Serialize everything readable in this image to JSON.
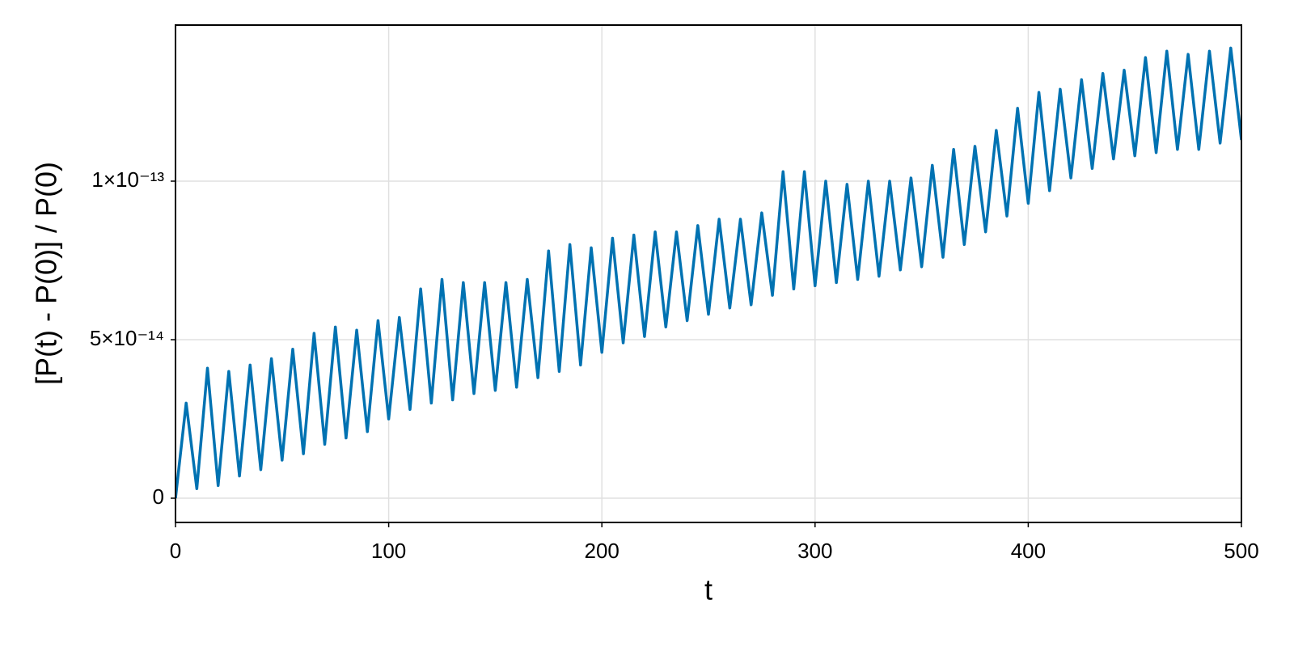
{
  "chart_data": {
    "type": "line",
    "xlabel": "t",
    "ylabel": "[P(t) - P(0)] / P(0)",
    "xlim": [
      0,
      500
    ],
    "xticks": [
      0,
      100,
      200,
      300,
      400,
      500
    ],
    "ylim": [
      -7.65e-15,
      1.4923e-13
    ],
    "yticks": [
      0,
      {
        "value": 5e-14,
        "label": "5×10⁻¹⁴"
      },
      {
        "value": 1e-13,
        "label": "1×10⁻¹³"
      }
    ],
    "grid": true,
    "series": [
      {
        "color": "#0072b2",
        "x": [
          0,
          5,
          10,
          15,
          20,
          25,
          30,
          35,
          40,
          45,
          50,
          55,
          60,
          65,
          70,
          75,
          80,
          85,
          90,
          95,
          100,
          105,
          110,
          115,
          120,
          125,
          130,
          135,
          140,
          145,
          150,
          155,
          160,
          165,
          170,
          175,
          180,
          185,
          190,
          195,
          200,
          205,
          210,
          215,
          220,
          225,
          230,
          235,
          240,
          245,
          250,
          255,
          260,
          265,
          270,
          275,
          280,
          285,
          290,
          295,
          300,
          305,
          310,
          315,
          320,
          325,
          330,
          335,
          340,
          345,
          350,
          355,
          360,
          365,
          370,
          375,
          380,
          385,
          390,
          395,
          400,
          405,
          410,
          415,
          420,
          425,
          430,
          435,
          440,
          445,
          450,
          455,
          460,
          465,
          470,
          475,
          480,
          485,
          490,
          495,
          500
        ],
        "values": [
          0,
          3e-14,
          3e-15,
          4.1e-14,
          4e-15,
          4e-14,
          7e-15,
          4.2e-14,
          9e-15,
          4.4e-14,
          1.2e-14,
          4.7e-14,
          1.4e-14,
          5.2e-14,
          1.7e-14,
          5.4e-14,
          1.9e-14,
          5.3e-14,
          2.1e-14,
          5.6e-14,
          2.5e-14,
          5.7e-14,
          2.8e-14,
          6.6e-14,
          3e-14,
          6.9e-14,
          3.1e-14,
          6.8e-14,
          3.3e-14,
          6.8e-14,
          3.4e-14,
          6.8e-14,
          3.5e-14,
          6.9e-14,
          3.8e-14,
          7.8e-14,
          4e-14,
          8e-14,
          4.2e-14,
          7.9e-14,
          4.6e-14,
          8.2e-14,
          4.9e-14,
          8.3e-14,
          5.1e-14,
          8.4e-14,
          5.4e-14,
          8.4e-14,
          5.6e-14,
          8.6e-14,
          5.8e-14,
          8.8e-14,
          6e-14,
          8.8e-14,
          6.1e-14,
          9e-14,
          6.4e-14,
          1.03e-13,
          6.6e-14,
          1.03e-13,
          6.7e-14,
          1e-13,
          6.8e-14,
          9.9e-14,
          6.9e-14,
          1e-13,
          7e-14,
          1e-13,
          7.2e-14,
          1.01e-13,
          7.3e-14,
          1.05e-13,
          7.6e-14,
          1.1e-13,
          8e-14,
          1.11e-13,
          8.4e-14,
          1.16e-13,
          8.9e-14,
          1.23e-13,
          9.3e-14,
          1.28e-13,
          9.7e-14,
          1.29e-13,
          1.01e-13,
          1.32e-13,
          1.04e-13,
          1.34e-13,
          1.07e-13,
          1.35e-13,
          1.08e-13,
          1.39e-13,
          1.09e-13,
          1.41e-13,
          1.1e-13,
          1.4e-13,
          1.1e-13,
          1.41e-13,
          1.12e-13,
          1.42e-13,
          1.13e-13
        ]
      }
    ]
  }
}
